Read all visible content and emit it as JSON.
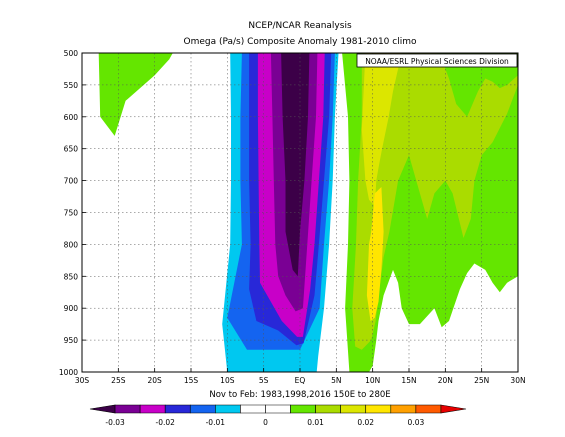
{
  "chart_data": {
    "type": "contour",
    "title": "NCEP/NCAR Reanalysis",
    "subtitle": "Omega (Pa/s) Composite Anomaly 1981-2010 climo",
    "attribution": "NOAA/ESRL Physical Sciences Division",
    "xlabel": "Nov to Feb: 1983,1998,2016 150E to 280E",
    "x_ticks": [
      "30S",
      "25S",
      "20S",
      "15S",
      "10S",
      "5S",
      "EQ",
      "5N",
      "10N",
      "15N",
      "20N",
      "25N",
      "30N"
    ],
    "x_values": [
      -30,
      -25,
      -20,
      -15,
      -10,
      -5,
      0,
      5,
      10,
      15,
      20,
      25,
      30
    ],
    "xlim": [
      -30,
      30
    ],
    "y_ticks": [
      "500",
      "550",
      "600",
      "650",
      "700",
      "750",
      "800",
      "850",
      "900",
      "950",
      "1000"
    ],
    "y_values": [
      500,
      550,
      600,
      650,
      700,
      750,
      800,
      850,
      900,
      950,
      1000
    ],
    "ylim": [
      500,
      1000
    ],
    "y_inverted": true,
    "grid": true,
    "legend": "colorbar-bottom",
    "colorbar": {
      "tick_labels": [
        "-0.03",
        "-0.02",
        "-0.01",
        "0",
        "0.01",
        "0.02",
        "0.03"
      ],
      "tick_values": [
        -0.03,
        -0.02,
        -0.01,
        0,
        0.01,
        0.02,
        0.03
      ],
      "colors": [
        "#3c0048",
        "#7a0094",
        "#c800c8",
        "#2828d8",
        "#1464f0",
        "#00c8f0",
        "#ffffff",
        "#ffffff",
        "#64e600",
        "#aadc00",
        "#dce600",
        "#ffe600",
        "#ffa000",
        "#ff5a00",
        "#e60000"
      ]
    },
    "regions": [
      {
        "level": -0.035,
        "color": "#00c8f0",
        "points": [
          [
            -10,
            1000
          ],
          [
            -10.7,
            925
          ],
          [
            -9.6,
            800
          ],
          [
            -9.5,
            700
          ],
          [
            -9.5,
            600
          ],
          [
            -9.6,
            500
          ],
          [
            5.3,
            500
          ],
          [
            4.8,
            600
          ],
          [
            4.5,
            700
          ],
          [
            4.0,
            800
          ],
          [
            3.3,
            900
          ],
          [
            2.5,
            975
          ],
          [
            2.3,
            1000
          ]
        ]
      },
      {
        "level": -0.035,
        "color": "#1464f0",
        "points": [
          [
            -7.3,
            965
          ],
          [
            -10.0,
            915
          ],
          [
            -8.0,
            800
          ],
          [
            -8.2,
            700
          ],
          [
            -8.2,
            600
          ],
          [
            -8.0,
            500
          ],
          [
            4.8,
            500
          ],
          [
            4.5,
            600
          ],
          [
            4.0,
            700
          ],
          [
            3.3,
            800
          ],
          [
            2.7,
            900
          ],
          [
            0.0,
            965
          ]
        ]
      },
      {
        "level": -0.035,
        "color": "#2828d8",
        "points": [
          [
            -6.0,
            920
          ],
          [
            -7.0,
            870
          ],
          [
            -6.8,
            800
          ],
          [
            -7.0,
            700
          ],
          [
            -7.0,
            600
          ],
          [
            -7.0,
            500
          ],
          [
            4.3,
            500
          ],
          [
            4.0,
            600
          ],
          [
            3.3,
            700
          ],
          [
            2.6,
            800
          ],
          [
            2.0,
            880
          ],
          [
            0.5,
            955
          ],
          [
            -0.5,
            958
          ],
          [
            -3.0,
            935
          ]
        ]
      },
      {
        "level": -0.035,
        "color": "#c800c8",
        "points": [
          [
            -5.5,
            860
          ],
          [
            -5.6,
            800
          ],
          [
            -5.7,
            700
          ],
          [
            -5.8,
            600
          ],
          [
            -5.8,
            500
          ],
          [
            3.4,
            500
          ],
          [
            3.2,
            600
          ],
          [
            2.6,
            700
          ],
          [
            2.0,
            800
          ],
          [
            1.4,
            870
          ],
          [
            0.4,
            945
          ],
          [
            -0.4,
            945
          ],
          [
            -2.5,
            920
          ]
        ]
      },
      {
        "level": -0.035,
        "color": "#7a0094",
        "points": [
          [
            -3.0,
            850
          ],
          [
            -3.4,
            800
          ],
          [
            -3.6,
            700
          ],
          [
            -3.8,
            600
          ],
          [
            -4.0,
            500
          ],
          [
            2.4,
            500
          ],
          [
            2.2,
            600
          ],
          [
            1.6,
            700
          ],
          [
            1.0,
            800
          ],
          [
            0.4,
            900
          ],
          [
            -0.6,
            905
          ],
          [
            -2.0,
            880
          ]
        ]
      },
      {
        "level": -0.035,
        "color": "#3c0048",
        "points": [
          [
            -2.0,
            780
          ],
          [
            -2.0,
            700
          ],
          [
            -2.4,
            600
          ],
          [
            -2.6,
            500
          ],
          [
            1.3,
            500
          ],
          [
            1.1,
            600
          ],
          [
            0.6,
            700
          ],
          [
            0.0,
            780
          ],
          [
            -0.3,
            850
          ],
          [
            -1.0,
            840
          ]
        ]
      },
      {
        "level": 0.005,
        "color": "#64e600",
        "points": [
          [
            -27.7,
            500
          ],
          [
            -27.5,
            600
          ],
          [
            -25.5,
            630
          ],
          [
            -24,
            575
          ],
          [
            -20,
            535
          ],
          [
            -18,
            510
          ],
          [
            -17.5,
            500
          ]
        ]
      },
      {
        "level": 0.005,
        "color": "#64e600",
        "points": [
          [
            6.8,
            1000
          ],
          [
            6.2,
            900
          ],
          [
            6.6,
            800
          ],
          [
            6.8,
            700
          ],
          [
            6.6,
            600
          ],
          [
            5.8,
            500
          ],
          [
            30,
            500
          ],
          [
            30,
            850
          ],
          [
            28.5,
            860
          ],
          [
            27.5,
            875
          ],
          [
            26.5,
            860
          ],
          [
            25.5,
            840
          ],
          [
            24.0,
            830
          ],
          [
            23.0,
            845
          ],
          [
            22.0,
            870
          ],
          [
            20.5,
            920
          ],
          [
            19.5,
            930
          ],
          [
            18.5,
            900
          ],
          [
            16.5,
            925
          ],
          [
            15.0,
            925
          ],
          [
            14.0,
            900
          ],
          [
            13.5,
            860
          ],
          [
            12.8,
            840
          ],
          [
            11.5,
            880
          ],
          [
            10.8,
            920
          ],
          [
            10.5,
            950
          ],
          [
            10.0,
            990
          ],
          [
            9.5,
            1000
          ]
        ]
      },
      {
        "level": 0.015,
        "color": "#aadc00",
        "points": [
          [
            7.6,
            960
          ],
          [
            7.2,
            900
          ],
          [
            7.7,
            800
          ],
          [
            8.0,
            700
          ],
          [
            8.5,
            600
          ],
          [
            8.5,
            500
          ],
          [
            30,
            500
          ],
          [
            30,
            550
          ],
          [
            28.5,
            595
          ],
          [
            26.5,
            640
          ],
          [
            25.0,
            660
          ],
          [
            24.0,
            700
          ],
          [
            23.5,
            760
          ],
          [
            22.5,
            790
          ],
          [
            21.0,
            720
          ],
          [
            20.0,
            700
          ],
          [
            18.5,
            720
          ],
          [
            17.5,
            760
          ],
          [
            16.5,
            720
          ],
          [
            15.0,
            660
          ],
          [
            13.5,
            700
          ],
          [
            12.3,
            780
          ],
          [
            11.5,
            820
          ],
          [
            10.8,
            880
          ],
          [
            10.4,
            920
          ],
          [
            9.8,
            950
          ],
          [
            8.5,
            965
          ]
        ]
      },
      {
        "level": 0.015,
        "color": "#dce600",
        "points": [
          [
            9.0,
            500
          ],
          [
            14.0,
            500
          ],
          [
            12.8,
            560
          ],
          [
            12.2,
            600
          ],
          [
            11.3,
            650
          ],
          [
            10.8,
            680
          ],
          [
            10.5,
            700
          ],
          [
            10.3,
            740
          ],
          [
            9.5,
            730
          ],
          [
            9.0,
            700
          ],
          [
            8.5,
            620
          ]
        ]
      },
      {
        "level": 0.015,
        "color": "#ffe600",
        "points": [
          [
            9.5,
            800
          ],
          [
            9.8,
            780
          ],
          [
            10.3,
            720
          ],
          [
            11.2,
            710
          ],
          [
            11.5,
            780
          ],
          [
            11.2,
            840
          ],
          [
            10.8,
            890
          ],
          [
            10.3,
            915
          ],
          [
            9.7,
            920
          ],
          [
            9.2,
            880
          ]
        ]
      },
      {
        "level": 0.005,
        "color": "#64e600",
        "points": [
          [
            18.8,
            500
          ],
          [
            30,
            500
          ],
          [
            30,
            535
          ],
          [
            28.5,
            550
          ],
          [
            27.5,
            555
          ],
          [
            26.5,
            545
          ],
          [
            25.5,
            540
          ],
          [
            24.5,
            560
          ],
          [
            23.0,
            600
          ],
          [
            21.5,
            580
          ],
          [
            20.5,
            540
          ],
          [
            19.5,
            510
          ]
        ]
      }
    ]
  }
}
